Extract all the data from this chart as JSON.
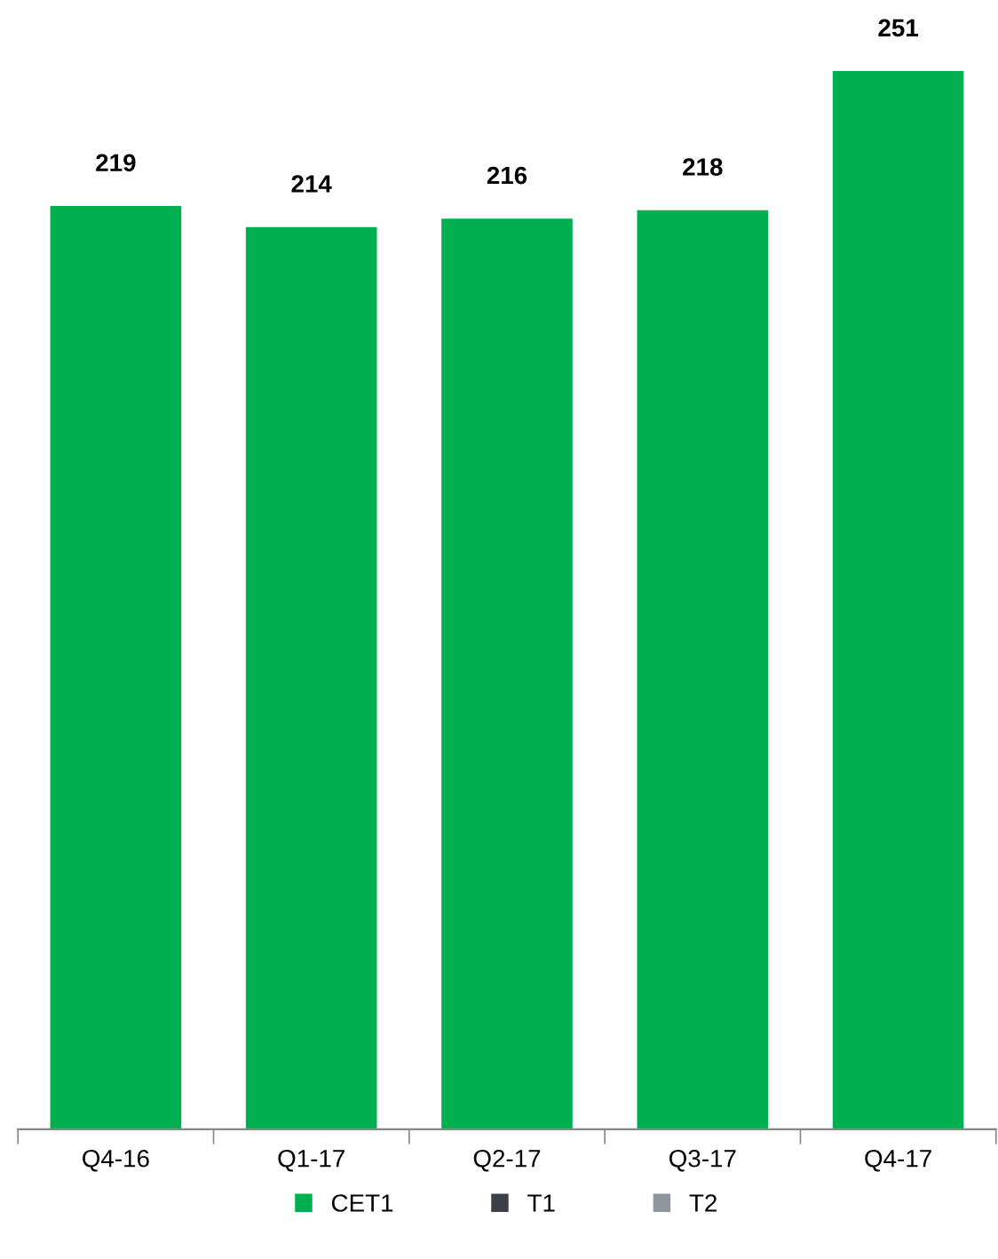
{
  "chart_data": {
    "type": "bar",
    "categories": [
      "Q4-16",
      "Q1-17",
      "Q2-17",
      "Q3-17",
      "Q4-17"
    ],
    "series": [
      {
        "name": "CET1",
        "color": "#00b050",
        "values": [
          219,
          214,
          216,
          218,
          251
        ]
      },
      {
        "name": "T1",
        "color": "#3b4046",
        "values": [
          null,
          null,
          null,
          null,
          null
        ]
      },
      {
        "name": "T2",
        "color": "#8e959b",
        "values": [
          null,
          null,
          null,
          null,
          null
        ]
      }
    ],
    "data_labels": true,
    "legend": "bottom",
    "grid": false
  }
}
